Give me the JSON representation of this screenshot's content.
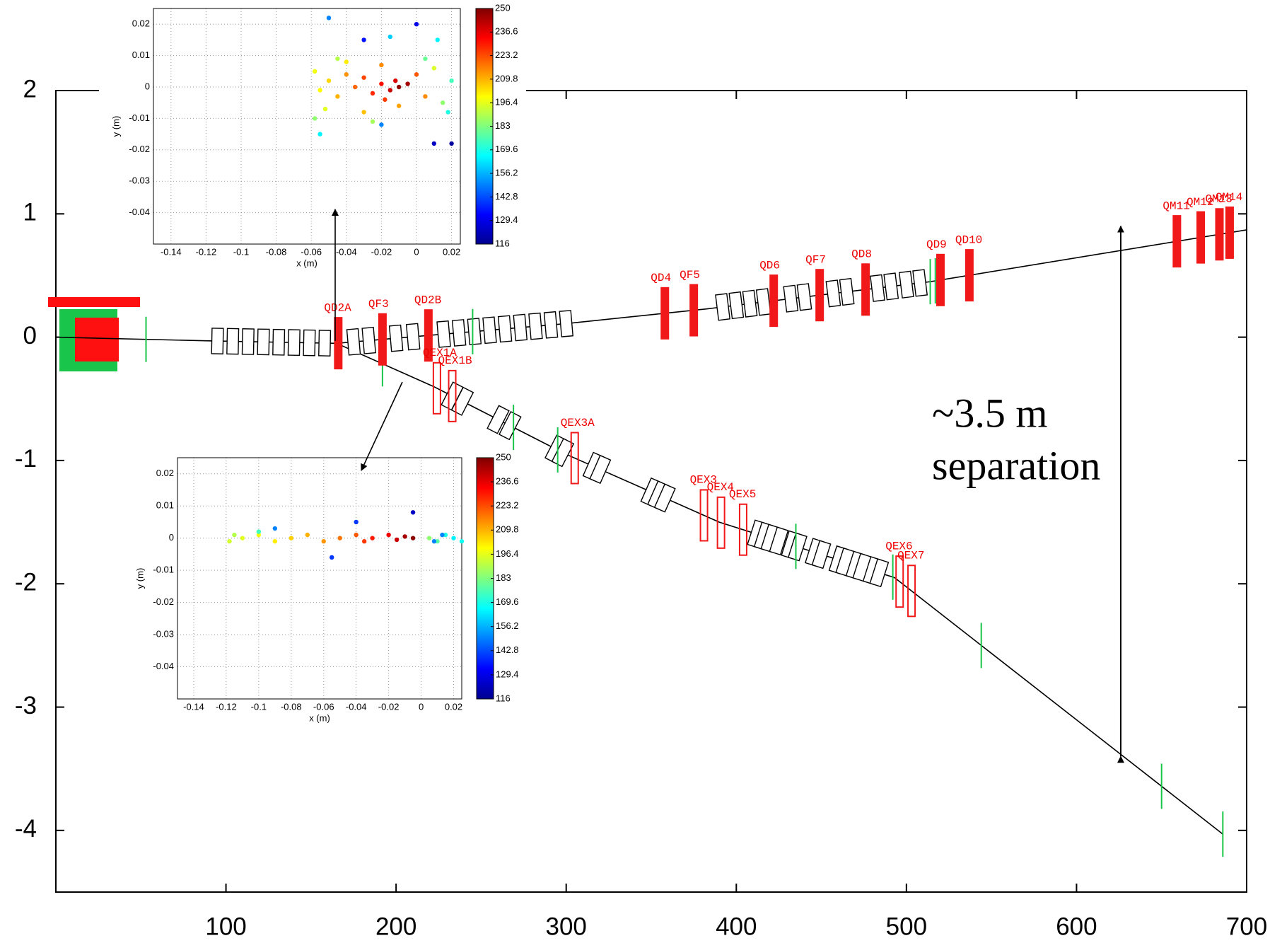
{
  "chart_data": {
    "type": "beamline",
    "xlim": [
      0,
      700
    ],
    "ylim": [
      -4.5,
      2
    ],
    "xticks": [
      100,
      200,
      300,
      400,
      500,
      600,
      700
    ],
    "yticks": [
      2,
      1,
      0,
      -1,
      -2,
      -3,
      -4
    ],
    "upper_line": {
      "x": [
        0,
        90,
        165,
        300,
        383,
        514,
        700
      ],
      "y": [
        0,
        -0.03,
        -0.05,
        0.11,
        0.23,
        0.45,
        0.87
      ]
    },
    "lower_line": {
      "x": [
        165,
        222,
        300,
        390,
        493,
        686
      ],
      "y": [
        -0.05,
        -0.4,
        -0.95,
        -1.5,
        -1.95,
        -4.03
      ]
    },
    "upper_dipoles": [
      95,
      104,
      113,
      122,
      131,
      140,
      149,
      158,
      175,
      184,
      200,
      210,
      228,
      237,
      246,
      255,
      264,
      273,
      282,
      291,
      300,
      392,
      400,
      408,
      416,
      432,
      440,
      457,
      465,
      483,
      491,
      500,
      508
    ],
    "lower_dipoles": [
      233,
      239,
      260,
      267,
      294,
      298,
      316,
      320,
      350,
      354,
      358,
      412,
      416,
      420,
      425,
      432,
      436,
      446,
      450,
      460,
      464,
      470,
      474,
      480,
      484
    ],
    "upper_quadrupoles": [
      {
        "name": "QD2A",
        "x": 166
      },
      {
        "name": "QF3",
        "x": 192
      },
      {
        "name": "QD2B",
        "x": 219
      },
      {
        "name": "QD4",
        "x": 358
      },
      {
        "name": "QF5",
        "x": 375
      },
      {
        "name": "QD6",
        "x": 422
      },
      {
        "name": "QF7",
        "x": 449
      },
      {
        "name": "QD8",
        "x": 476
      },
      {
        "name": "QD9",
        "x": 520
      },
      {
        "name": "QD10",
        "x": 537
      },
      {
        "name": "QM11",
        "x": 659
      },
      {
        "name": "QM12",
        "x": 673
      },
      {
        "name": "QM13",
        "x": 684
      },
      {
        "name": "QM14",
        "x": 690
      }
    ],
    "lower_quadrupoles": [
      {
        "name": "QEX1A",
        "x": 224
      },
      {
        "name": "QEX1B",
        "x": 233
      },
      {
        "name": "QEX3A",
        "x": 305
      },
      {
        "name": "QEX3",
        "x": 381
      },
      {
        "name": "QEX4",
        "x": 391
      },
      {
        "name": "QEX5",
        "x": 404
      },
      {
        "name": "QEX6",
        "x": 496
      },
      {
        "name": "QEX7",
        "x": 503
      }
    ],
    "upper_correctors": [
      53,
      245,
      514,
      517
    ],
    "lower_correctors": [
      192,
      269,
      295,
      435,
      492,
      544,
      650,
      686
    ],
    "annotation": [
      "~3.5 m",
      "separation"
    ],
    "separation": {
      "x": 626,
      "y": [
        0.9,
        -3.4
      ]
    },
    "insets": [
      {
        "type": "scatter",
        "xlabel": "x (m)",
        "ylabel": "y (m)",
        "xlim": [
          -0.15,
          0.025
        ],
        "ylim": [
          -0.05,
          0.025
        ],
        "xticks": [
          -0.14,
          -0.12,
          -0.1,
          -0.08,
          -0.06,
          -0.04,
          -0.02,
          0,
          0.02
        ],
        "yticks": [
          0.02,
          0.01,
          0,
          -0.01,
          -0.02,
          -0.03,
          -0.04
        ],
        "clim": [
          116,
          250
        ],
        "cticks": [
          250,
          236.6,
          223.2,
          209.8,
          196.4,
          183,
          169.6,
          156.2,
          142.8,
          129.4,
          116
        ],
        "x": [
          -0.01,
          -0.005,
          -0.015,
          -0.012,
          -0.02,
          -0.025,
          -0.03,
          -0.018,
          -0.035,
          -0.04,
          -0.045,
          -0.05,
          -0.055,
          -0.058,
          -0.052,
          -0.04,
          -0.03,
          -0.02,
          -0.01,
          0,
          0.005,
          0.01,
          0.015,
          0.02,
          0.018,
          -0.045,
          -0.058,
          -0.025,
          0.005,
          -0.05,
          0,
          -0.03,
          -0.015,
          0.01,
          0.02,
          -0.055,
          -0.02,
          0.012
        ],
        "y": [
          0,
          0.001,
          -0.001,
          0.002,
          0.001,
          -0.002,
          0.003,
          -0.004,
          0,
          0.004,
          -0.003,
          0.002,
          -0.001,
          0.005,
          -0.007,
          0.008,
          -0.008,
          0.007,
          -0.006,
          0.004,
          -0.003,
          0.006,
          -0.005,
          0.002,
          -0.008,
          0.009,
          -0.01,
          -0.011,
          0.009,
          0.022,
          0.02,
          0.015,
          0.016,
          -0.018,
          -0.018,
          -0.015,
          -0.012,
          0.015
        ],
        "c": [
          248,
          245,
          240,
          238,
          232,
          228,
          224,
          226,
          220,
          214,
          210,
          205,
          200,
          198,
          196,
          202,
          208,
          215,
          212,
          222,
          215,
          195,
          185,
          175,
          170,
          190,
          185,
          188,
          180,
          150,
          130,
          135,
          160,
          125,
          120,
          165,
          150,
          165
        ]
      },
      {
        "type": "scatter",
        "xlabel": "x (m)",
        "ylabel": "y (m)",
        "xlim": [
          -0.15,
          0.025
        ],
        "ylim": [
          -0.05,
          0.025
        ],
        "xticks": [
          -0.14,
          -0.12,
          -0.1,
          -0.08,
          -0.06,
          -0.04,
          -0.02,
          0,
          0.02
        ],
        "yticks": [
          0.02,
          0.01,
          0,
          -0.01,
          -0.02,
          -0.03,
          -0.04
        ],
        "clim": [
          116,
          250
        ],
        "cticks": [
          250,
          236.6,
          223.2,
          209.8,
          196.4,
          183,
          169.6,
          156.2,
          142.8,
          129.4,
          116
        ],
        "x": [
          -0.005,
          -0.01,
          -0.015,
          -0.02,
          -0.03,
          -0.035,
          -0.04,
          -0.05,
          -0.06,
          -0.07,
          -0.08,
          -0.09,
          -0.1,
          -0.11,
          -0.118,
          -0.115,
          0.005,
          0.01,
          0.015,
          0.02,
          0.025,
          -0.09,
          -0.04,
          -0.005,
          -0.055,
          0.008,
          -0.1,
          0.013
        ],
        "y": [
          0,
          0.0005,
          -0.0005,
          0.001,
          0,
          -0.001,
          0.001,
          0,
          -0.001,
          0.001,
          0,
          -0.001,
          0.001,
          0,
          -0.001,
          0.001,
          0,
          -0.001,
          0.001,
          0,
          -0.001,
          0.003,
          0.005,
          0.008,
          -0.006,
          -0.001,
          0.002,
          0.001
        ],
        "c": [
          248,
          245,
          240,
          235,
          230,
          226,
          222,
          218,
          214,
          210,
          206,
          202,
          198,
          196,
          194,
          190,
          185,
          178,
          170,
          165,
          168,
          150,
          140,
          125,
          140,
          150,
          175,
          150
        ]
      }
    ]
  }
}
